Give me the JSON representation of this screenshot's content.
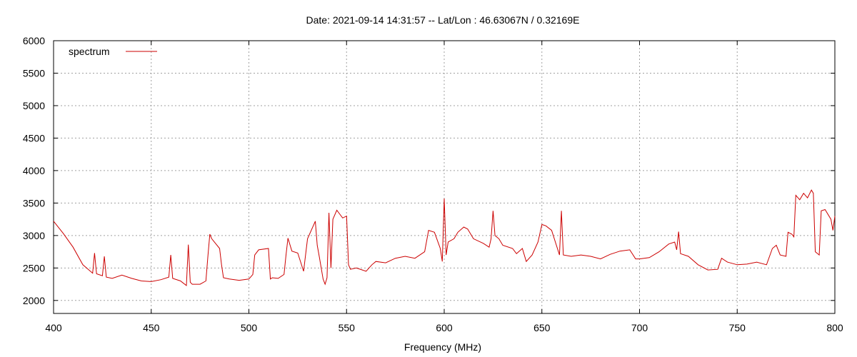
{
  "chart_data": {
    "type": "line",
    "title": "Date: 2021-09-14 14:31:57  --  Lat/Lon : 46.63067N / 0.32169E",
    "xlabel": "Frequency (MHz)",
    "ylabel": "",
    "xlim": [
      400,
      800
    ],
    "ylim": [
      1800,
      6000
    ],
    "xticks": [
      400,
      450,
      500,
      550,
      600,
      650,
      700,
      750,
      800
    ],
    "yticks": [
      2000,
      2500,
      3000,
      3500,
      4000,
      4500,
      5000,
      5500,
      6000
    ],
    "grid": true,
    "legend_position": "top-left",
    "series": [
      {
        "name": "spectrum",
        "color": "#cc0000",
        "x": [
          400,
          405,
          410,
          415,
          420,
          421,
          422,
          425,
          426,
          427,
          430,
          435,
          440,
          445,
          450,
          455,
          459,
          460,
          461,
          465,
          468,
          469,
          470,
          471,
          475,
          478,
          479,
          480,
          481,
          485,
          486,
          487,
          490,
          495,
          500,
          502,
          503,
          505,
          510,
          511,
          512,
          515,
          518,
          519,
          520,
          522,
          525,
          528,
          530,
          534,
          535,
          536,
          538,
          539,
          540,
          541,
          542,
          543,
          545,
          546,
          548,
          550,
          551,
          552,
          555,
          560,
          563,
          565,
          570,
          575,
          580,
          585,
          590,
          592,
          595,
          598,
          599,
          600,
          601,
          602,
          605,
          607,
          610,
          612,
          615,
          620,
          623,
          624,
          625,
          626,
          628,
          630,
          635,
          637,
          640,
          642,
          645,
          648,
          650,
          652,
          655,
          659,
          660,
          661,
          665,
          670,
          675,
          680,
          685,
          690,
          695,
          698,
          700,
          705,
          710,
          715,
          718,
          719,
          720,
          721,
          725,
          730,
          735,
          740,
          742,
          745,
          750,
          755,
          760,
          765,
          768,
          770,
          772,
          775,
          776,
          778,
          779,
          780,
          782,
          784,
          786,
          788,
          789,
          790,
          792,
          793,
          795,
          798,
          799,
          800
        ],
        "y": [
          3220,
          3030,
          2820,
          2550,
          2420,
          2730,
          2410,
          2380,
          2680,
          2360,
          2340,
          2390,
          2340,
          2300,
          2290,
          2320,
          2360,
          2700,
          2340,
          2300,
          2230,
          2860,
          2280,
          2250,
          2250,
          2300,
          2680,
          3020,
          2950,
          2800,
          2550,
          2350,
          2330,
          2310,
          2330,
          2400,
          2700,
          2780,
          2800,
          2330,
          2350,
          2340,
          2400,
          2700,
          2960,
          2760,
          2730,
          2450,
          2950,
          3220,
          2850,
          2680,
          2330,
          2250,
          2350,
          3350,
          2500,
          3250,
          3390,
          3350,
          3270,
          3300,
          2550,
          2480,
          2500,
          2450,
          2550,
          2600,
          2580,
          2650,
          2680,
          2650,
          2750,
          3080,
          3050,
          2800,
          2600,
          3570,
          2700,
          2900,
          2950,
          3050,
          3130,
          3100,
          2950,
          2880,
          2820,
          2950,
          3380,
          3000,
          2950,
          2850,
          2800,
          2720,
          2800,
          2600,
          2700,
          2900,
          3170,
          3150,
          3080,
          2700,
          3380,
          2700,
          2680,
          2700,
          2680,
          2640,
          2710,
          2760,
          2780,
          2640,
          2640,
          2660,
          2750,
          2870,
          2900,
          2780,
          3060,
          2720,
          2680,
          2550,
          2470,
          2480,
          2650,
          2590,
          2550,
          2560,
          2590,
          2550,
          2800,
          2850,
          2700,
          2680,
          3050,
          3020,
          2980,
          3620,
          3550,
          3650,
          3580,
          3700,
          3650,
          2750,
          2700,
          3380,
          3400,
          3250,
          3080,
          3300
        ]
      }
    ]
  }
}
